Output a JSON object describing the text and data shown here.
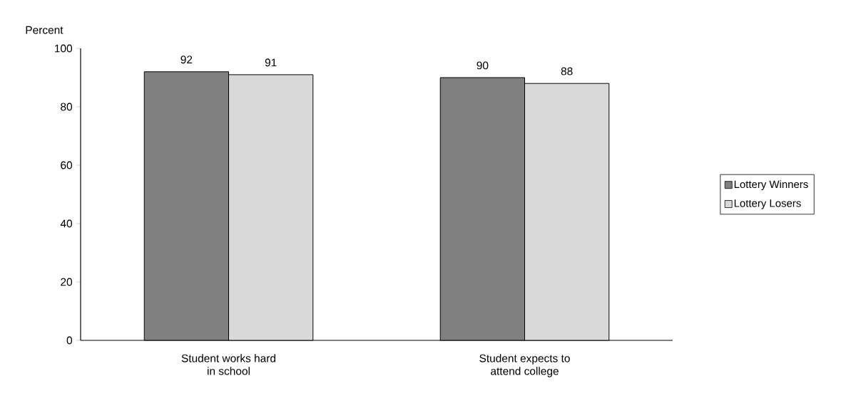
{
  "chart_data": {
    "type": "bar",
    "ylabel": "Percent",
    "categories": [
      "Student works hard in school",
      "Student expects to attend college"
    ],
    "series": [
      {
        "name": "Lottery Winners",
        "color": "#808080",
        "values": [
          92,
          90
        ]
      },
      {
        "name": "Lottery Losers",
        "color": "#d9d9d9",
        "values": [
          91,
          88
        ]
      }
    ],
    "ylim": [
      0,
      100
    ],
    "yticks": [
      0,
      20,
      40,
      60,
      80,
      100
    ],
    "grid": false,
    "legend": "right",
    "data_labels": true
  }
}
